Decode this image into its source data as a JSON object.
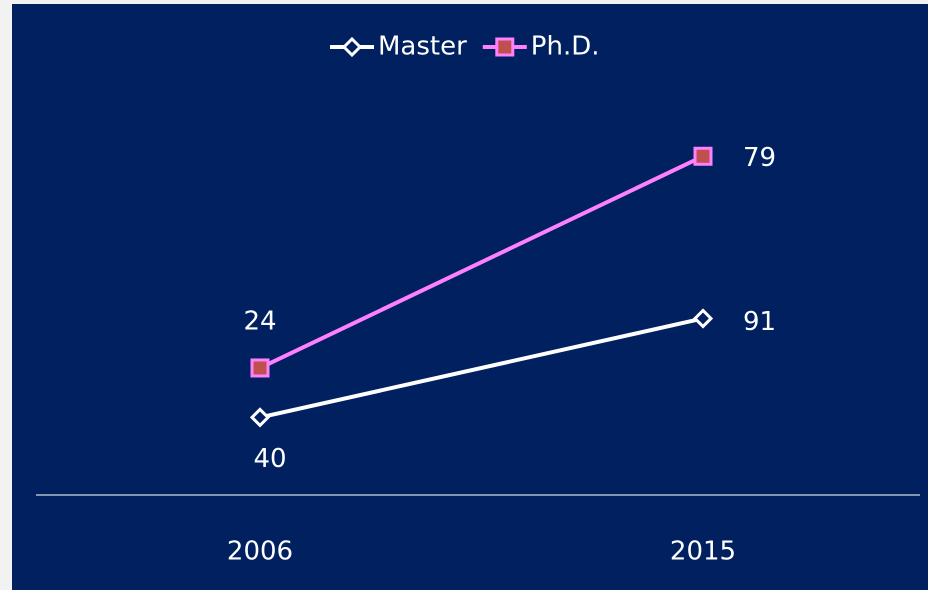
{
  "chart_data": {
    "type": "line",
    "categories": [
      "2006",
      "2015"
    ],
    "series": [
      {
        "name": "Master",
        "color": "#ffffff",
        "marker_fill": "#002060",
        "marker": "diamond",
        "values": [
          40,
          91
        ]
      },
      {
        "name": "Ph.D.",
        "color": "#ff80ff",
        "marker_fill": "#c0504d",
        "marker": "square",
        "axis": "y2",
        "values": [
          24,
          79
        ]
      }
    ],
    "ylim": [
      0,
      250
    ],
    "y2lim": [
      -9,
      117
    ],
    "legend": "top",
    "background": "#002060"
  }
}
